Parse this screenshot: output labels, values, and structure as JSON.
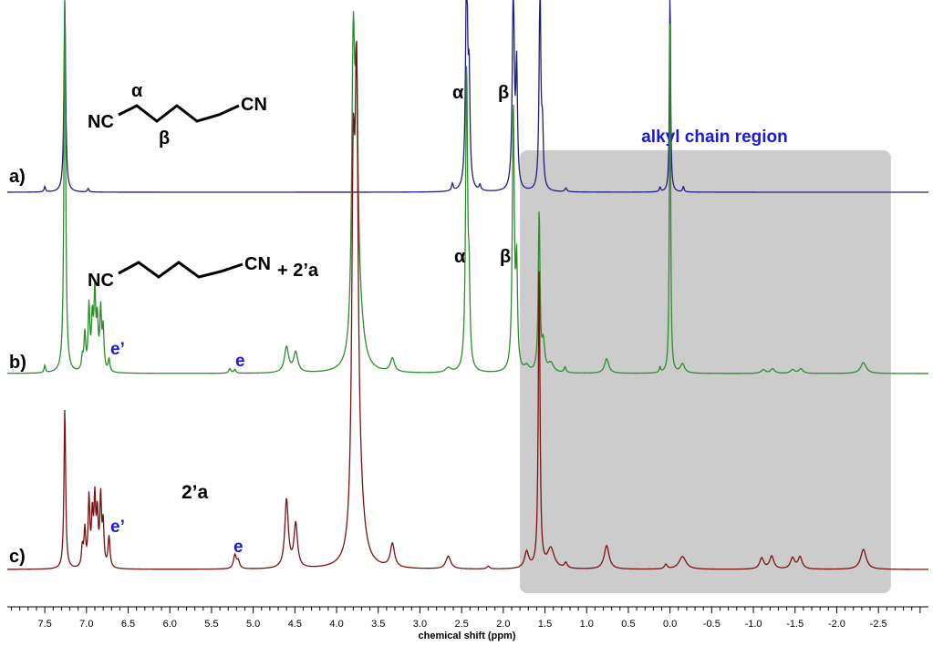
{
  "chart_data": {
    "type": "line",
    "title": "",
    "xlabel": "chemical shift (ppm)",
    "ylabel": "",
    "x_range": [
      7.95,
      -3.1
    ],
    "x_ticks": [
      7.5,
      7.0,
      6.5,
      6.0,
      5.5,
      5.0,
      4.5,
      4.0,
      3.5,
      3.0,
      2.5,
      2.0,
      1.5,
      1.0,
      0.5,
      0.0,
      -0.5,
      -1.0,
      -1.5,
      -2.0,
      -2.5
    ],
    "x_tick_labels": [
      "7.5",
      "7.0",
      "6.5",
      "6.0",
      "5.5",
      "5.0",
      "4.5",
      "4.0",
      "3.5",
      "3.0",
      "2.5",
      "2.0",
      "1.5",
      "1.0",
      "0.5",
      "0.0",
      "-0.5",
      "-1.0",
      "-1.5",
      "-2.0",
      "-2.5"
    ],
    "region": {
      "label": "alkyl chain region",
      "from_ppm": 1.8,
      "to_ppm": -2.65
    },
    "series": [
      {
        "name": "a)",
        "color": "#1f1f7a",
        "peaks": [
          {
            "x": 7.26,
            "h": 210,
            "w": 0.012
          },
          {
            "x": 7.5,
            "h": 6,
            "w": 0.01
          },
          {
            "x": 6.98,
            "h": 4,
            "w": 0.01
          },
          {
            "x": 2.61,
            "h": 8,
            "w": 0.012
          },
          {
            "x": 2.44,
            "h": 260,
            "w": 0.014
          },
          {
            "x": 2.41,
            "h": 110,
            "w": 0.012
          },
          {
            "x": 2.28,
            "h": 6,
            "w": 0.012
          },
          {
            "x": 1.88,
            "h": 230,
            "w": 0.014
          },
          {
            "x": 1.84,
            "h": 130,
            "w": 0.012
          },
          {
            "x": 1.56,
            "h": 230,
            "w": 0.012
          },
          {
            "x": 1.53,
            "h": 60,
            "w": 0.012
          },
          {
            "x": 1.25,
            "h": 4,
            "w": 0.015
          },
          {
            "x": 0.12,
            "h": 5,
            "w": 0.01
          },
          {
            "x": 0.0,
            "h": 230,
            "w": 0.008
          },
          {
            "x": -0.16,
            "h": 6,
            "w": 0.01
          }
        ]
      },
      {
        "name": "b)",
        "color": "#2e8b2e",
        "peaks": [
          {
            "x": 7.26,
            "h": 420,
            "w": 0.012
          },
          {
            "x": 7.5,
            "h": 8,
            "w": 0.01
          },
          {
            "x": 7.05,
            "h": 14,
            "w": 0.012
          },
          {
            "x": 7.02,
            "h": 40,
            "w": 0.012
          },
          {
            "x": 6.97,
            "h": 70,
            "w": 0.012
          },
          {
            "x": 6.93,
            "h": 55,
            "w": 0.012
          },
          {
            "x": 6.9,
            "h": 82,
            "w": 0.012
          },
          {
            "x": 6.87,
            "h": 52,
            "w": 0.012
          },
          {
            "x": 6.83,
            "h": 65,
            "w": 0.012
          },
          {
            "x": 6.8,
            "h": 45,
            "w": 0.012
          },
          {
            "x": 6.73,
            "h": 14,
            "w": 0.012
          },
          {
            "x": 5.28,
            "h": 5,
            "w": 0.015
          },
          {
            "x": 5.22,
            "h": 4,
            "w": 0.015
          },
          {
            "x": 4.6,
            "h": 28,
            "w": 0.03
          },
          {
            "x": 4.49,
            "h": 22,
            "w": 0.03
          },
          {
            "x": 3.8,
            "h": 320,
            "w": 0.022
          },
          {
            "x": 3.76,
            "h": 260,
            "w": 0.022
          },
          {
            "x": 3.72,
            "h": 40,
            "w": 0.06
          },
          {
            "x": 3.33,
            "h": 15,
            "w": 0.03
          },
          {
            "x": 2.66,
            "h": 5,
            "w": 0.04
          },
          {
            "x": 2.44,
            "h": 330,
            "w": 0.014
          },
          {
            "x": 2.41,
            "h": 80,
            "w": 0.012
          },
          {
            "x": 1.88,
            "h": 290,
            "w": 0.014
          },
          {
            "x": 1.84,
            "h": 110,
            "w": 0.012
          },
          {
            "x": 1.72,
            "h": 6,
            "w": 0.03
          },
          {
            "x": 1.57,
            "h": 175,
            "w": 0.012
          },
          {
            "x": 1.52,
            "h": 30,
            "w": 0.02
          },
          {
            "x": 1.43,
            "h": 10,
            "w": 0.04
          },
          {
            "x": 1.26,
            "h": 6,
            "w": 0.015
          },
          {
            "x": 0.76,
            "h": 16,
            "w": 0.03
          },
          {
            "x": 0.12,
            "h": 6,
            "w": 0.01
          },
          {
            "x": 0.0,
            "h": 400,
            "w": 0.008
          },
          {
            "x": -0.15,
            "h": 10,
            "w": 0.03
          },
          {
            "x": -1.12,
            "h": 4,
            "w": 0.03
          },
          {
            "x": -1.23,
            "h": 5,
            "w": 0.03
          },
          {
            "x": -1.47,
            "h": 4,
            "w": 0.03
          },
          {
            "x": -1.57,
            "h": 5,
            "w": 0.03
          },
          {
            "x": -2.32,
            "h": 12,
            "w": 0.04
          }
        ]
      },
      {
        "name": "c)",
        "color": "#7a1212",
        "peaks": [
          {
            "x": 7.26,
            "h": 175,
            "w": 0.012
          },
          {
            "x": 7.05,
            "h": 22,
            "w": 0.012
          },
          {
            "x": 7.02,
            "h": 40,
            "w": 0.012
          },
          {
            "x": 6.97,
            "h": 75,
            "w": 0.012
          },
          {
            "x": 6.93,
            "h": 55,
            "w": 0.012
          },
          {
            "x": 6.9,
            "h": 70,
            "w": 0.012
          },
          {
            "x": 6.87,
            "h": 55,
            "w": 0.012
          },
          {
            "x": 6.83,
            "h": 75,
            "w": 0.012
          },
          {
            "x": 6.8,
            "h": 45,
            "w": 0.012
          },
          {
            "x": 6.73,
            "h": 34,
            "w": 0.014
          },
          {
            "x": 5.22,
            "h": 15,
            "w": 0.02
          },
          {
            "x": 5.18,
            "h": 8,
            "w": 0.02
          },
          {
            "x": 4.6,
            "h": 75,
            "w": 0.025
          },
          {
            "x": 4.49,
            "h": 48,
            "w": 0.025
          },
          {
            "x": 3.8,
            "h": 370,
            "w": 0.022
          },
          {
            "x": 3.76,
            "h": 460,
            "w": 0.022
          },
          {
            "x": 3.72,
            "h": 50,
            "w": 0.06
          },
          {
            "x": 3.33,
            "h": 26,
            "w": 0.03
          },
          {
            "x": 2.66,
            "h": 14,
            "w": 0.035
          },
          {
            "x": 2.18,
            "h": 3,
            "w": 0.02
          },
          {
            "x": 1.72,
            "h": 18,
            "w": 0.03
          },
          {
            "x": 1.57,
            "h": 330,
            "w": 0.012
          },
          {
            "x": 1.43,
            "h": 22,
            "w": 0.05
          },
          {
            "x": 1.25,
            "h": 6,
            "w": 0.02
          },
          {
            "x": 0.76,
            "h": 26,
            "w": 0.035
          },
          {
            "x": 0.05,
            "h": 5,
            "w": 0.02
          },
          {
            "x": -0.15,
            "h": 14,
            "w": 0.05
          },
          {
            "x": -1.1,
            "h": 12,
            "w": 0.03
          },
          {
            "x": -1.22,
            "h": 14,
            "w": 0.03
          },
          {
            "x": -1.47,
            "h": 12,
            "w": 0.03
          },
          {
            "x": -1.56,
            "h": 13,
            "w": 0.03
          },
          {
            "x": -2.32,
            "h": 22,
            "w": 0.04
          }
        ]
      }
    ],
    "trace_labels": [
      "a)",
      "b)",
      "c)"
    ],
    "peak_labels": {
      "alpha_a": "α",
      "beta_a": "β",
      "alpha_b": "α",
      "beta_b": "β",
      "e_prime_b": "e’",
      "e_b": "e",
      "e_prime_c": "e’",
      "e_c": "e"
    },
    "structure_a": {
      "left": "NC",
      "right": "CN",
      "alpha": "α",
      "beta": "β"
    },
    "structure_b": {
      "left": "NC",
      "right": "CN",
      "suffix": "+ 2’a"
    },
    "compound_c": "2’a",
    "colors": {
      "annotation_blue": "#1a1ad8",
      "region_fill": "#cccccc"
    }
  }
}
